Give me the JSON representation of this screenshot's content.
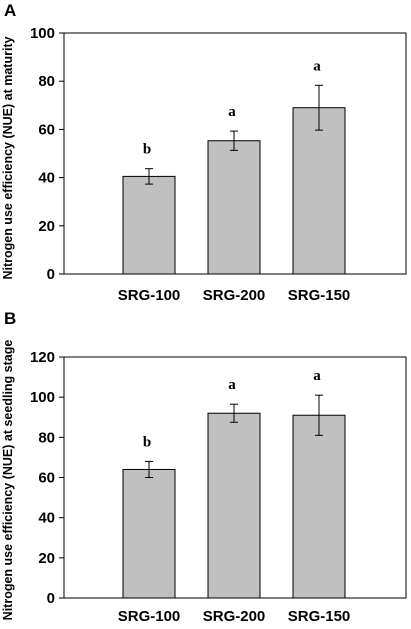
{
  "chart_data": [
    {
      "type": "bar",
      "panel_label": "A",
      "ylabel": "Nitrogen use efficiency (NUE) at maturity",
      "xlabel": "",
      "categories": [
        "SRG-100",
        "SRG-200",
        "SRG-150"
      ],
      "values": [
        40.5,
        55.3,
        69
      ],
      "errors": [
        3.2,
        4,
        9.3
      ],
      "significance": [
        "b",
        "a",
        "a"
      ],
      "ylim": [
        0,
        100
      ],
      "yticks": [
        "0",
        "20",
        "40",
        "60",
        "80",
        "100"
      ],
      "bar_color": "#c0c0c0",
      "grid": false
    },
    {
      "type": "bar",
      "panel_label": "B",
      "ylabel": "Nitrogen use efficiency (NUE) at seedling stage",
      "xlabel": "",
      "categories": [
        "SRG-100",
        "SRG-200",
        "SRG-150"
      ],
      "values": [
        64,
        92,
        91
      ],
      "errors": [
        4,
        4.5,
        10
      ],
      "significance": [
        "b",
        "a",
        "a"
      ],
      "ylim": [
        0,
        120
      ],
      "yticks": [
        "0",
        "20",
        "40",
        "60",
        "80",
        "100",
        "120"
      ],
      "bar_color": "#c0c0c0",
      "grid": false
    }
  ]
}
